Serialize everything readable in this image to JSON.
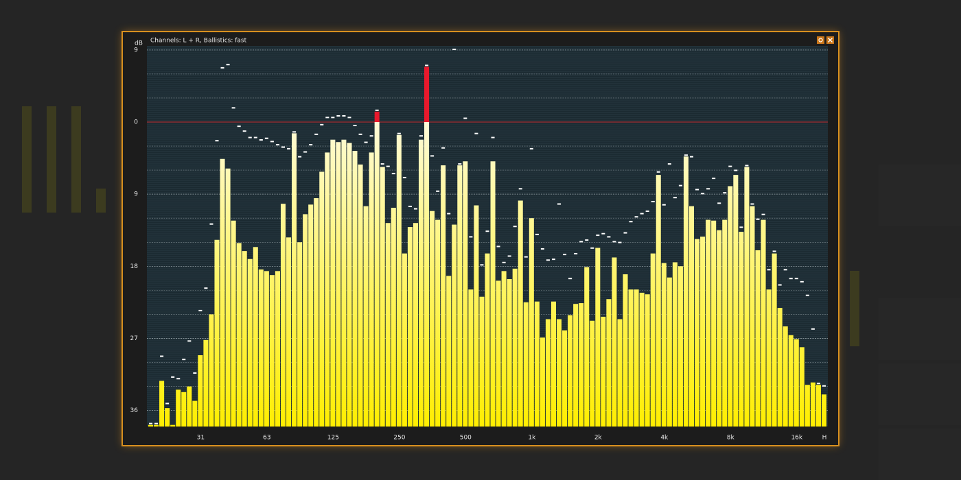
{
  "window": {
    "title": "Channels: L + R, Ballistics: fast"
  },
  "chart_data": {
    "type": "bar",
    "y_unit": "dB",
    "categories": [
      null,
      null,
      null,
      null,
      null,
      null,
      null,
      null,
      null,
      "31",
      null,
      null,
      null,
      null,
      null,
      null,
      null,
      null,
      null,
      null,
      null,
      "63",
      null,
      null,
      null,
      null,
      null,
      null,
      null,
      null,
      null,
      null,
      null,
      "125",
      null,
      null,
      null,
      null,
      null,
      null,
      null,
      null,
      null,
      null,
      null,
      "250",
      null,
      null,
      null,
      null,
      null,
      null,
      null,
      null,
      null,
      null,
      null,
      "500",
      null,
      null,
      null,
      null,
      null,
      null,
      null,
      null,
      null,
      null,
      null,
      "1k",
      null,
      null,
      null,
      null,
      null,
      null,
      null,
      null,
      null,
      null,
      null,
      "2k",
      null,
      null,
      null,
      null,
      null,
      null,
      null,
      null,
      null,
      null,
      null,
      "4k",
      null,
      null,
      null,
      null,
      null,
      null,
      null,
      null,
      null,
      null,
      null,
      "8k",
      null,
      null,
      null,
      null,
      null,
      null,
      null,
      null,
      null,
      null,
      null,
      "16k",
      null,
      null,
      null,
      null,
      "H"
    ],
    "values": [
      -37.8,
      -37.8,
      -32.3,
      -35.7,
      -37.8,
      -33.4,
      -33.7,
      -33.0,
      -34.8,
      -29.1,
      -27.2,
      -24.0,
      -14.7,
      -4.6,
      -5.8,
      -12.3,
      -15.1,
      -16.1,
      -17.1,
      -15.6,
      -18.4,
      -18.6,
      -19.1,
      -18.6,
      -10.2,
      -14.4,
      -1.4,
      -15.0,
      -11.5,
      -10.3,
      -9.5,
      -6.2,
      -3.8,
      -2.2,
      -2.5,
      -2.2,
      -2.6,
      -3.6,
      -5.3,
      -10.5,
      -3.8,
      1.3,
      -5.6,
      -12.6,
      -10.7,
      -1.6,
      -16.4,
      -13.1,
      -12.6,
      -2.2,
      6.9,
      -11.1,
      -12.2,
      -5.4,
      -19.2,
      -12.8,
      -5.4,
      -4.9,
      -20.9,
      -10.4,
      -21.8,
      -16.4,
      -4.9,
      -19.8,
      -18.6,
      -19.6,
      -18.3,
      -9.8,
      -22.5,
      -12.0,
      -22.4,
      -26.9,
      -24.6,
      -22.4,
      -24.6,
      -26.0,
      -24.1,
      -22.7,
      -22.6,
      -18.1,
      -24.8,
      -15.7,
      -24.3,
      -22.1,
      -16.9,
      -24.6,
      -19.0,
      -20.9,
      -20.9,
      -21.3,
      -21.5,
      -16.4,
      -6.6,
      -17.6,
      -19.4,
      -17.5,
      -18.0,
      -4.3,
      -10.5,
      -14.6,
      -14.3,
      -12.2,
      -12.3,
      -13.5,
      -12.2,
      -8.0,
      -6.6,
      -13.7,
      -5.6,
      -10.5,
      -16.0,
      -12.2,
      -20.9,
      -16.4,
      -23.2,
      -25.5,
      -26.6,
      -27.1,
      -28.1,
      -32.8,
      -32.5,
      -32.8,
      -34.0
    ],
    "peaks": [
      -37.8,
      -37.8,
      -29.4,
      -35.3,
      -32.0,
      -32.2,
      -29.8,
      -27.5,
      -31.5,
      -23.7,
      -20.9,
      -12.9,
      -2.5,
      6.6,
      7.0,
      1.6,
      -0.7,
      -1.3,
      -2.1,
      -2.1,
      -2.4,
      -2.2,
      -2.6,
      -3.0,
      -3.3,
      -3.5,
      -1.4,
      -4.5,
      -3.9,
      -3.0,
      -1.7,
      -0.5,
      0.4,
      0.4,
      0.6,
      0.6,
      0.4,
      -0.6,
      -1.7,
      -2.7,
      -1.9,
      1.3,
      -5.4,
      -5.7,
      -6.6,
      -1.6,
      -7.1,
      -10.7,
      -11.0,
      -1.9,
      6.9,
      -4.4,
      -8.8,
      -3.4,
      -11.6,
      8.9,
      -5.4,
      0.3,
      -14.5,
      -1.6,
      -18.0,
      -13.8,
      -2.1,
      -15.7,
      -17.7,
      -16.9,
      -13.2,
      -8.5,
      -17.0,
      -3.5,
      -14.2,
      -16.0,
      -17.4,
      -17.3,
      -10.4,
      -16.7,
      -19.7,
      -16.6,
      -15.1,
      -14.9,
      -15.9,
      -14.3,
      -14.1,
      -14.5,
      -15.1,
      -15.2,
      -14.0,
      -12.6,
      -12.0,
      -11.6,
      -11.3,
      -10.1,
      -6.4,
      -10.5,
      -5.4,
      -9.6,
      -8.1,
      -4.3,
      -4.5,
      -8.6,
      -9.1,
      -8.5,
      -7.2,
      -10.3,
      -9.0,
      -5.7,
      -6.2,
      -13.3,
      -5.6,
      -10.4,
      -12.3,
      -11.7,
      -18.6,
      -16.3,
      -20.5,
      -18.6,
      -19.7,
      -19.7,
      -20.1,
      -21.8,
      -26.0,
      -32.8,
      -33.1
    ],
    "color": "#ffee00",
    "top_color": "#fffbd8",
    "over_color": "#e8192c",
    "peak_color": "#ffffff",
    "ylim": [
      -38,
      9.5
    ],
    "yticks": [
      9,
      0,
      {
        "value": -9,
        "label": "9"
      },
      {
        "value": -18,
        "label": "18"
      },
      {
        "value": -27,
        "label": "27"
      },
      {
        "value": -36,
        "label": "36"
      }
    ],
    "minor_yticks": [
      -36,
      -33,
      -30,
      -27,
      -24,
      -21,
      -18,
      -15,
      -12,
      -9,
      -6,
      -3,
      3,
      6,
      9
    ],
    "reference_line": 0,
    "reference_color": "#c0282c",
    "grid": true
  }
}
